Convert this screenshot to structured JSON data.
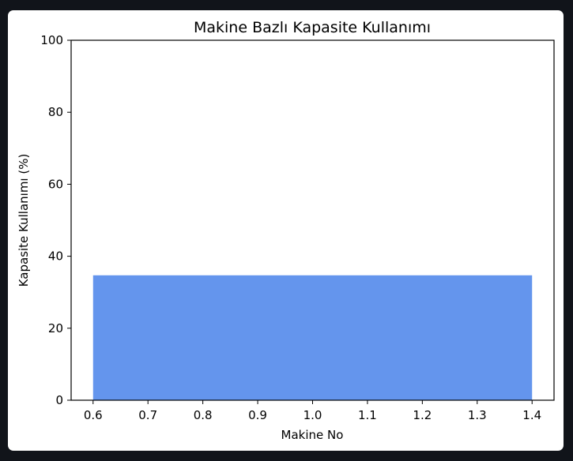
{
  "chart_data": {
    "type": "bar",
    "title": "Makine Bazlı Kapasite Kullanımı",
    "xlabel": "Makine No",
    "ylabel": "Kapasite Kullanımı (%)",
    "categories": [
      "1"
    ],
    "bars": [
      {
        "x": 1.0,
        "width": 0.8,
        "value": 34.7
      }
    ],
    "xlim": [
      0.56,
      1.44
    ],
    "ylim": [
      0,
      100
    ],
    "xticks": [
      "0.6",
      "0.7",
      "0.8",
      "0.9",
      "1.0",
      "1.1",
      "1.2",
      "1.3",
      "1.4"
    ],
    "yticks": [
      "0",
      "20",
      "40",
      "60",
      "80",
      "100"
    ],
    "bar_color": "#6495ED",
    "grid": false,
    "legend": "none"
  }
}
